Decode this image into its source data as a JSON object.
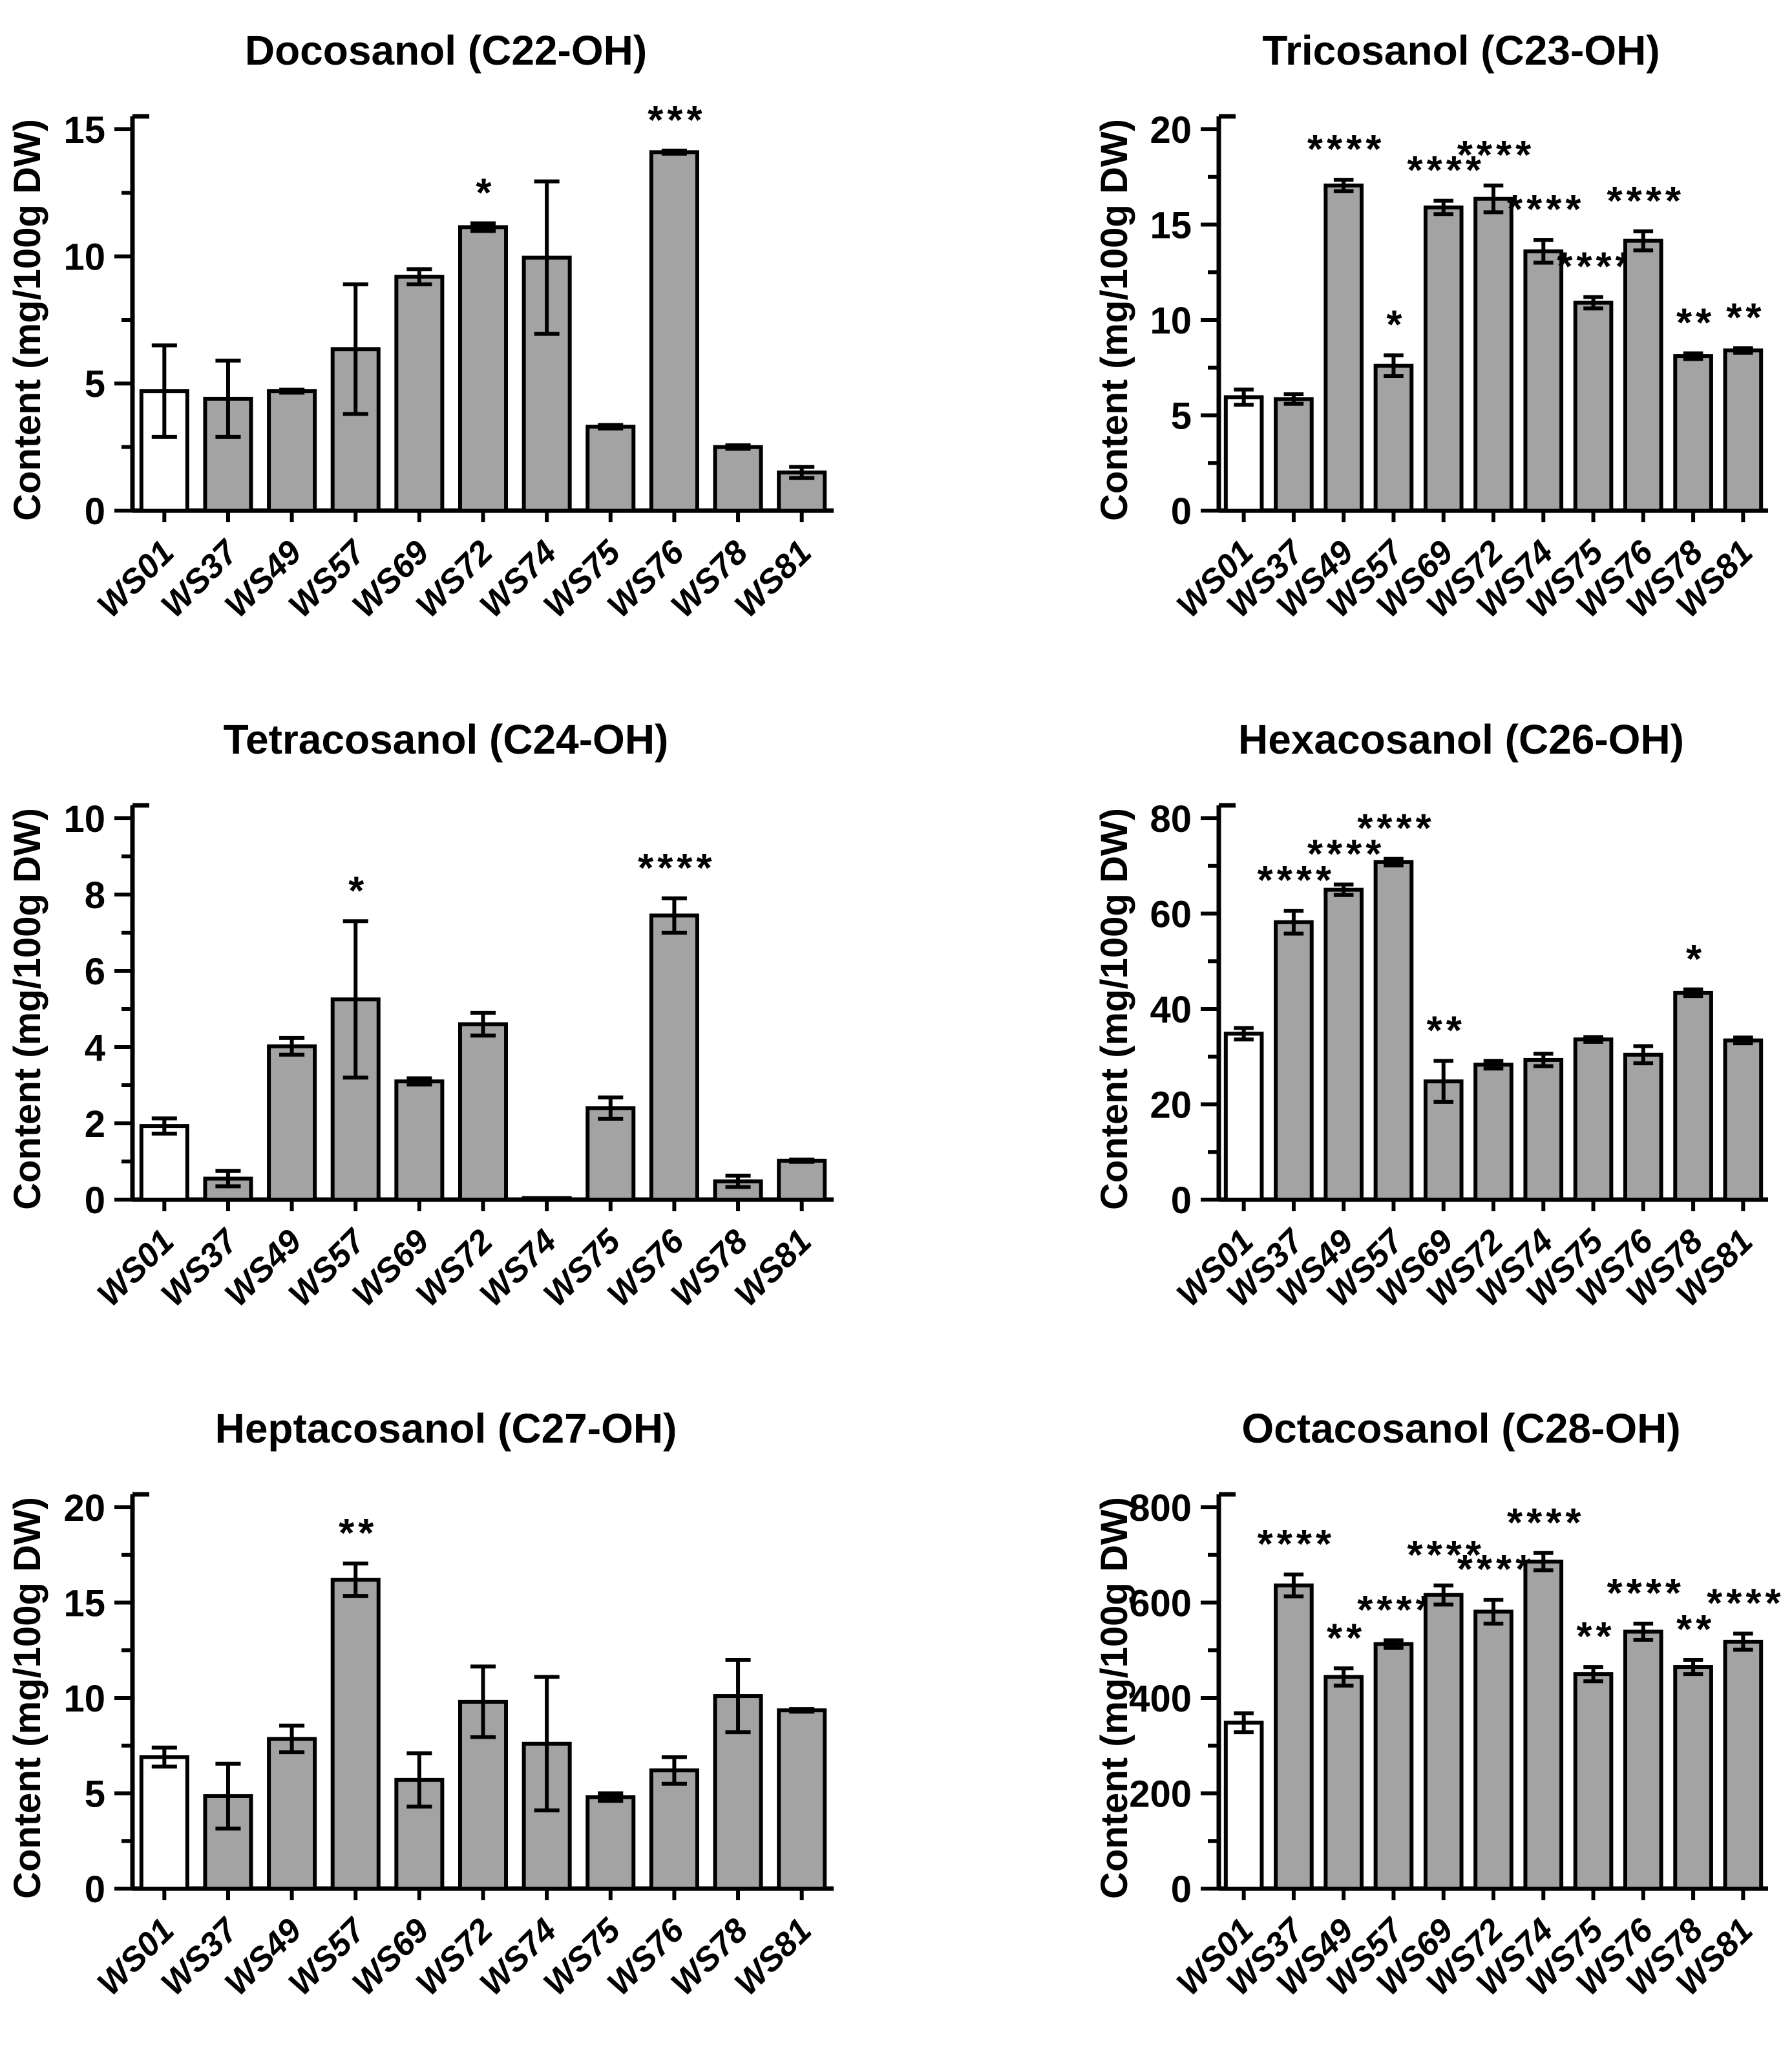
{
  "figure": {
    "background": "#FFFFFF",
    "bar_fill": "#A3A3A3",
    "control_fill": "#FFFFFF",
    "line_color": "#000000"
  },
  "chart_data": [
    {
      "type": "bar",
      "title": "Docosanol (C22-OH)",
      "ylabel": "Content (mg/100g DW)",
      "xlabel": "",
      "ylim": [
        0,
        15
      ],
      "yticks": [
        0,
        5,
        10,
        15
      ],
      "ytick_minor_step": 2.5,
      "grid": false,
      "legend": "none",
      "categories": [
        "WS01",
        "WS37",
        "WS49",
        "WS57",
        "WS69",
        "WS72",
        "WS74",
        "WS75",
        "WS76",
        "WS78",
        "WS81"
      ],
      "values": [
        4.7,
        4.4,
        4.7,
        6.35,
        9.2,
        11.15,
        9.95,
        3.3,
        14.1,
        2.5,
        1.5
      ],
      "errors": [
        1.8,
        1.5,
        0.06,
        2.55,
        0.3,
        0.15,
        3.0,
        0.07,
        0.06,
        0.07,
        0.22
      ],
      "sig": [
        "",
        "",
        "",
        "",
        "",
        "*",
        "",
        "",
        "***",
        "",
        ""
      ],
      "control_index": 0
    },
    {
      "type": "bar",
      "title": "Tricosanol (C23-OH)",
      "ylabel": "Content (mg/100g DW)",
      "xlabel": "",
      "ylim": [
        0,
        20
      ],
      "yticks": [
        0,
        5,
        10,
        15,
        20
      ],
      "ytick_minor_step": 2.5,
      "grid": false,
      "legend": "none",
      "categories": [
        "WS01",
        "WS37",
        "WS49",
        "WS57",
        "WS69",
        "WS72",
        "WS74",
        "WS75",
        "WS76",
        "WS78",
        "WS81"
      ],
      "values": [
        5.95,
        5.85,
        17.05,
        7.6,
        15.9,
        16.35,
        13.6,
        10.9,
        14.15,
        8.1,
        8.4
      ],
      "errors": [
        0.4,
        0.25,
        0.3,
        0.55,
        0.35,
        0.7,
        0.6,
        0.3,
        0.5,
        0.15,
        0.12
      ],
      "sig": [
        "",
        "",
        "****",
        "*",
        "****",
        "****",
        "****",
        "****",
        "****",
        "**",
        "**"
      ],
      "control_index": 0
    },
    {
      "type": "bar",
      "title": "Tetracosanol (C24-OH)",
      "ylabel": "Content (mg/100g DW)",
      "xlabel": "",
      "ylim": [
        0,
        10
      ],
      "yticks": [
        0,
        2,
        4,
        6,
        8,
        10
      ],
      "ytick_minor_step": 1,
      "grid": false,
      "legend": "none",
      "categories": [
        "WS01",
        "WS37",
        "WS49",
        "WS57",
        "WS69",
        "WS72",
        "WS74",
        "WS75",
        "WS76",
        "WS78",
        "WS81"
      ],
      "values": [
        1.93,
        0.55,
        4.02,
        5.25,
        3.1,
        4.6,
        0.04,
        2.4,
        7.45,
        0.48,
        1.02
      ],
      "errors": [
        0.2,
        0.2,
        0.22,
        2.05,
        0.08,
        0.3,
        0,
        0.28,
        0.45,
        0.15,
        0.03
      ],
      "sig": [
        "",
        "",
        "",
        "*",
        "",
        "",
        "",
        "",
        "****",
        "",
        ""
      ],
      "control_index": 0
    },
    {
      "type": "bar",
      "title": "Hexacosanol (C26-OH)",
      "ylabel": "Content (mg/100g DW)",
      "xlabel": "",
      "ylim": [
        0,
        80
      ],
      "yticks": [
        0,
        20,
        40,
        60,
        80
      ],
      "ytick_minor_step": 10,
      "grid": false,
      "legend": "none",
      "categories": [
        "WS01",
        "WS37",
        "WS49",
        "WS57",
        "WS69",
        "WS72",
        "WS74",
        "WS75",
        "WS76",
        "WS78",
        "WS81"
      ],
      "values": [
        34.8,
        58.2,
        65.0,
        70.8,
        24.8,
        28.3,
        29.3,
        33.6,
        30.4,
        43.4,
        33.4
      ],
      "errors": [
        1.2,
        2.4,
        1.1,
        0.7,
        4.3,
        0.8,
        1.3,
        0.5,
        1.8,
        0.7,
        0.6
      ],
      "sig": [
        "",
        "****",
        "****",
        "****",
        "**",
        "",
        "",
        "",
        "",
        "*",
        ""
      ],
      "control_index": 0
    },
    {
      "type": "bar",
      "title": "Heptacosanol (C27-OH)",
      "ylabel": "Content (mg/100g DW)",
      "xlabel": "",
      "ylim": [
        0,
        20
      ],
      "yticks": [
        0,
        5,
        10,
        15,
        20
      ],
      "ytick_minor_step": 2.5,
      "grid": false,
      "legend": "none",
      "categories": [
        "WS01",
        "WS37",
        "WS49",
        "WS57",
        "WS69",
        "WS72",
        "WS74",
        "WS75",
        "WS76",
        "WS78",
        "WS81"
      ],
      "values": [
        6.9,
        4.85,
        7.85,
        16.2,
        5.7,
        9.8,
        7.6,
        4.8,
        6.2,
        10.1,
        9.35
      ],
      "errors": [
        0.5,
        1.7,
        0.7,
        0.85,
        1.4,
        1.85,
        3.5,
        0.2,
        0.7,
        1.9,
        0.07
      ],
      "sig": [
        "",
        "",
        "",
        "**",
        "",
        "",
        "",
        "",
        "",
        "",
        ""
      ],
      "control_index": 0
    },
    {
      "type": "bar",
      "title": "Octacosanol (C28-OH)",
      "ylabel": "Content (mg/100g DW)",
      "xlabel": "",
      "ylim": [
        0,
        800
      ],
      "yticks": [
        0,
        200,
        400,
        600,
        800
      ],
      "ytick_minor_step": 100,
      "grid": false,
      "legend": "none",
      "categories": [
        "WS01",
        "WS37",
        "WS49",
        "WS57",
        "WS69",
        "WS72",
        "WS74",
        "WS75",
        "WS76",
        "WS78",
        "WS81"
      ],
      "values": [
        348,
        636,
        444,
        513,
        616,
        581,
        686,
        450,
        539,
        465,
        518
      ],
      "errors": [
        20,
        23,
        18,
        8,
        20,
        25,
        18,
        15,
        17,
        15,
        17
      ],
      "sig": [
        "",
        "****",
        "**",
        "****",
        "****",
        "****",
        "****",
        "**",
        "****",
        "**",
        "****"
      ],
      "control_index": 0
    }
  ]
}
